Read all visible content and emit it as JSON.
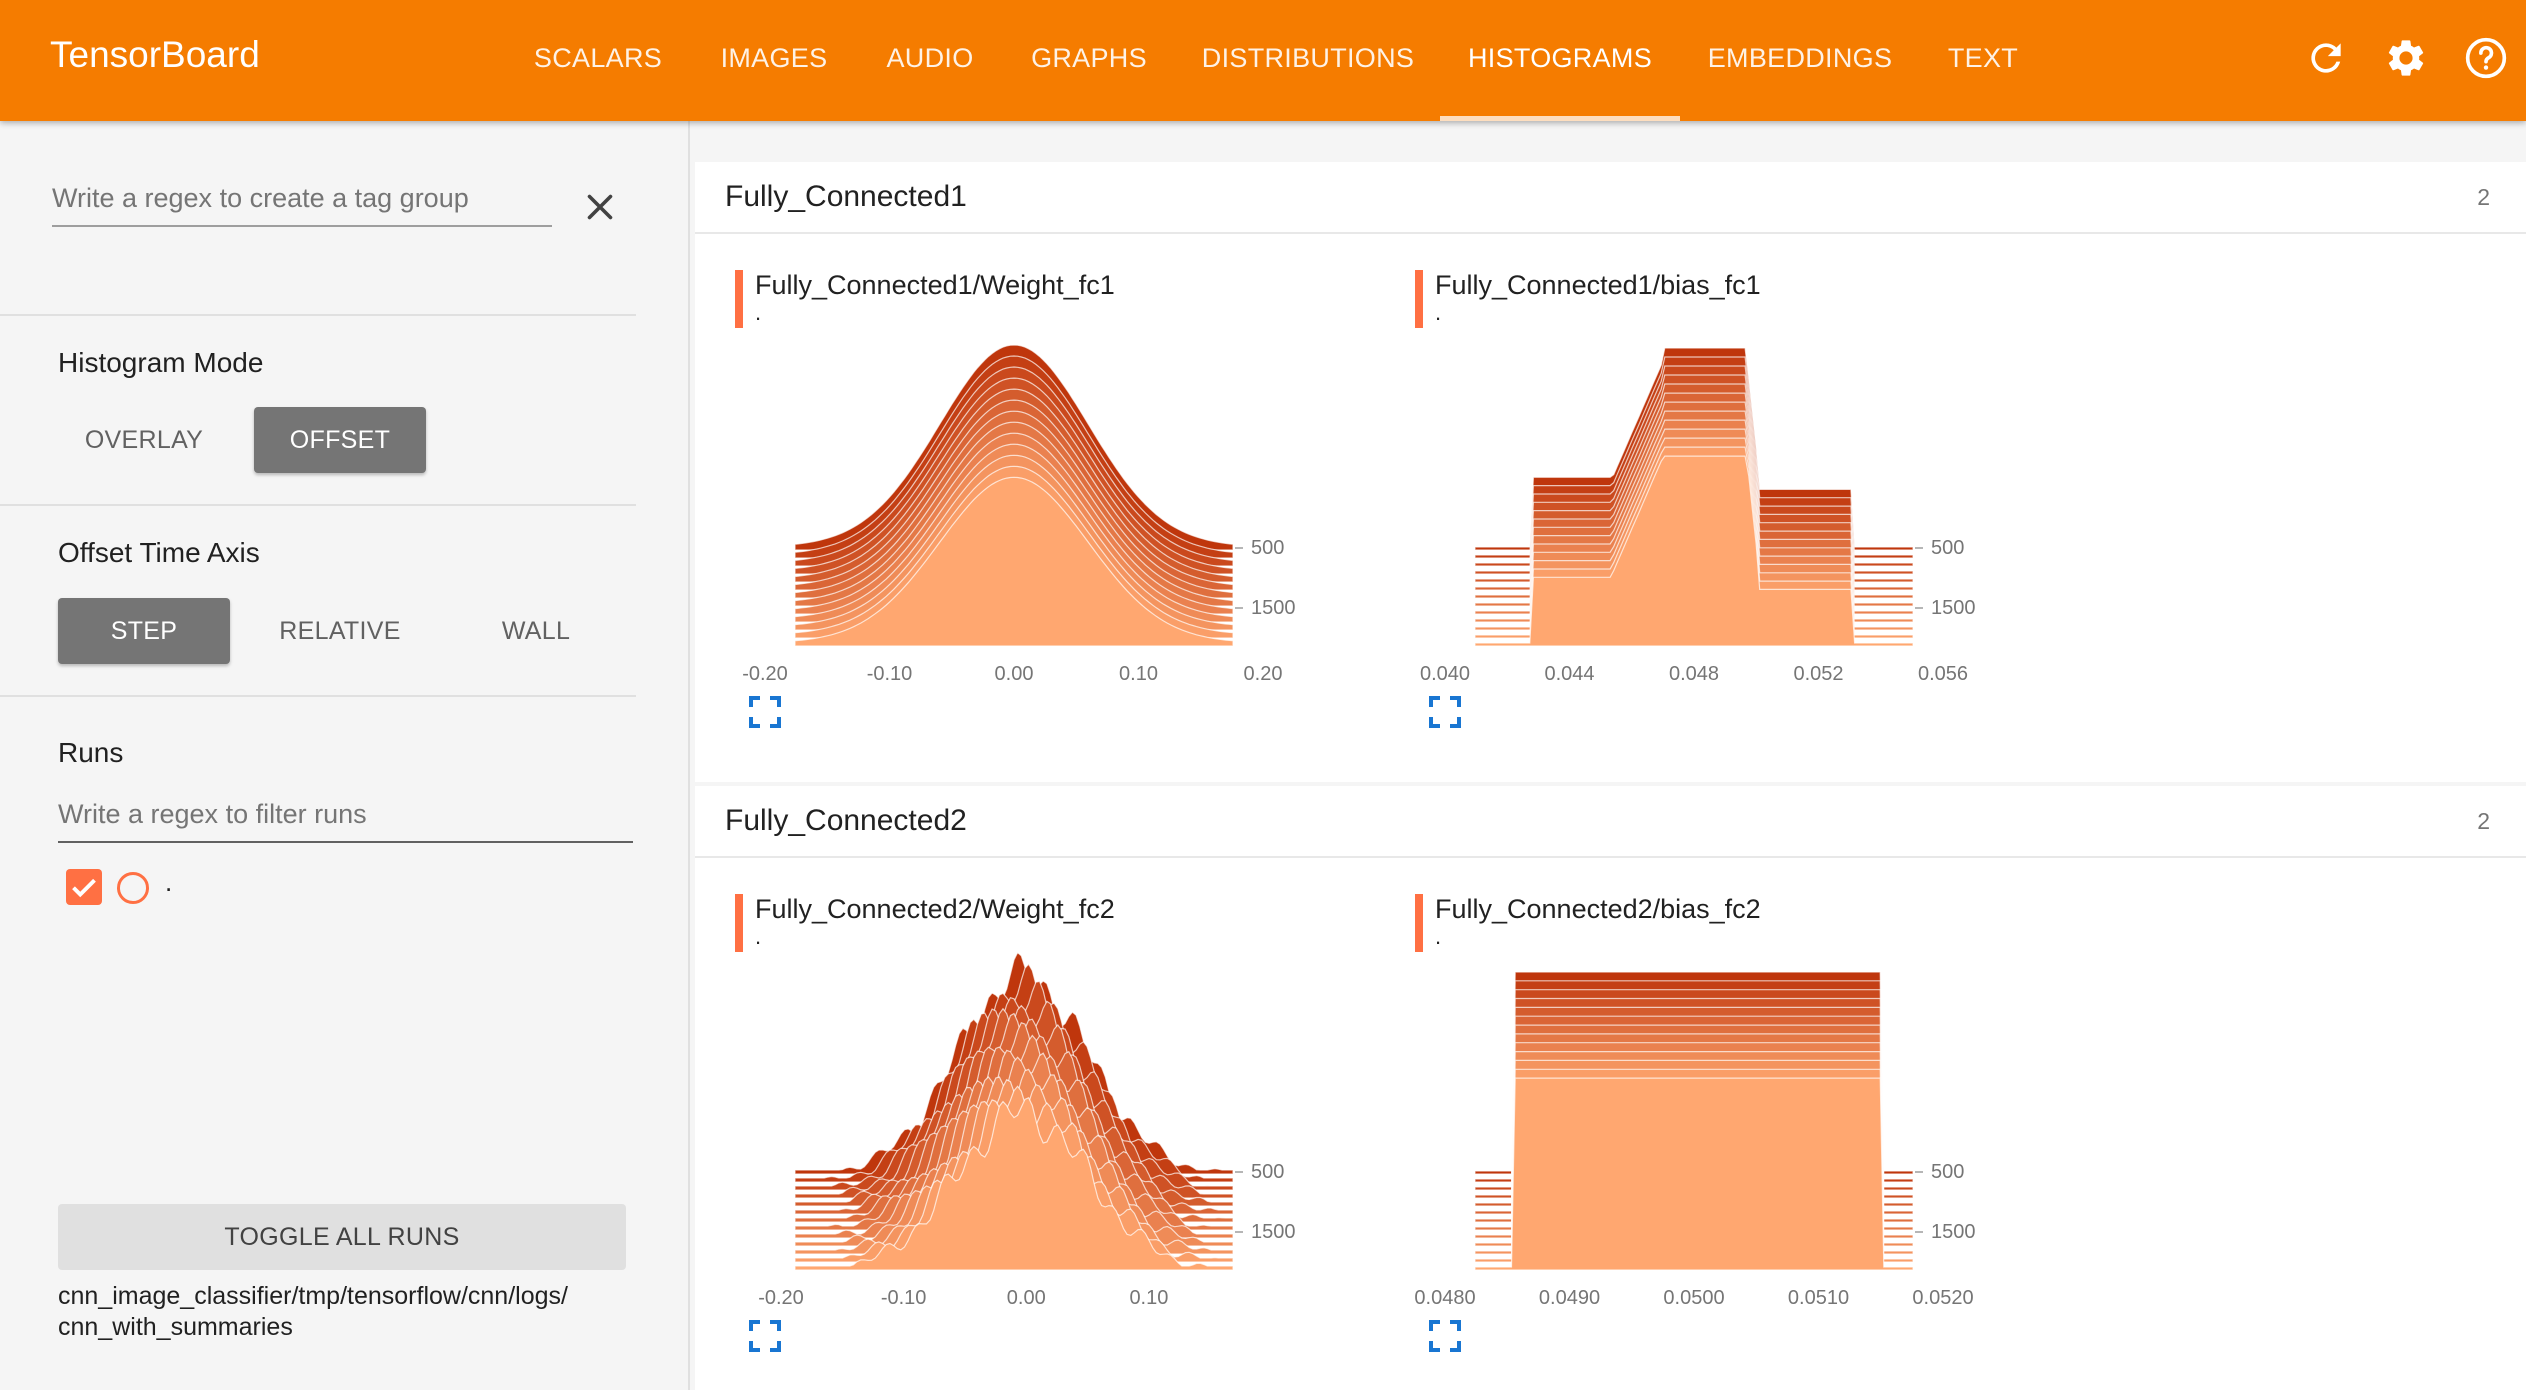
{
  "header": {
    "brand": "TensorBoard",
    "tabs": [
      {
        "label": "SCALARS",
        "active": false
      },
      {
        "label": "IMAGES",
        "active": false
      },
      {
        "label": "AUDIO",
        "active": false
      },
      {
        "label": "GRAPHS",
        "active": false
      },
      {
        "label": "DISTRIBUTIONS",
        "active": false
      },
      {
        "label": "HISTOGRAMS",
        "active": true
      },
      {
        "label": "EMBEDDINGS",
        "active": false
      },
      {
        "label": "TEXT",
        "active": false
      }
    ],
    "icons": [
      "refresh-icon",
      "settings-gear-icon",
      "help-icon"
    ],
    "accent": "#f57c00"
  },
  "sidebar": {
    "tag_regex_placeholder": "Write a regex to create a tag group",
    "histogram_mode": {
      "title": "Histogram Mode",
      "options": [
        "OVERLAY",
        "OFFSET"
      ],
      "selected": "OFFSET"
    },
    "offset_time_axis": {
      "title": "Offset Time Axis",
      "options": [
        "STEP",
        "RELATIVE",
        "WALL"
      ],
      "selected": "STEP"
    },
    "runs": {
      "title": "Runs",
      "filter_placeholder": "Write a regex to filter runs",
      "items": [
        {
          "label": ".",
          "checked": true,
          "color": "#ff7043"
        }
      ],
      "toggle_label": "TOGGLE ALL RUNS",
      "logdir_line1": "cnn_image_classifier/tmp/tensorflow/cnn/logs/",
      "logdir_line2": "cnn_with_summaries"
    }
  },
  "groups": [
    {
      "title": "Fully_Connected1",
      "count": "2",
      "charts": [
        {
          "title": "Fully_Connected1/Weight_fc1",
          "run": ".",
          "shape": "gaussian",
          "x_ticks": [
            "-0.20",
            "-0.10",
            "0.00",
            "0.10",
            "0.20"
          ],
          "y_ticks": [
            "500",
            "1500"
          ]
        },
        {
          "title": "Fully_Connected1/bias_fc1",
          "run": ".",
          "shape": "step",
          "x_ticks": [
            "0.040",
            "0.044",
            "0.048",
            "0.052",
            "0.056"
          ],
          "y_ticks": [
            "500",
            "1500"
          ]
        }
      ]
    },
    {
      "title": "Fully_Connected2",
      "count": "2",
      "charts": [
        {
          "title": "Fully_Connected2/Weight_fc2",
          "run": ".",
          "shape": "noisy",
          "x_ticks": [
            "-0.20",
            "-0.10",
            "0.00",
            "0.10"
          ],
          "y_ticks": [
            "500",
            "1500"
          ]
        },
        {
          "title": "Fully_Connected2/bias_fc2",
          "run": ".",
          "shape": "flat",
          "x_ticks": [
            "0.0480",
            "0.0490",
            "0.0500",
            "0.0510",
            "0.0520"
          ],
          "y_ticks": [
            "500",
            "1500"
          ]
        }
      ]
    }
  ]
}
